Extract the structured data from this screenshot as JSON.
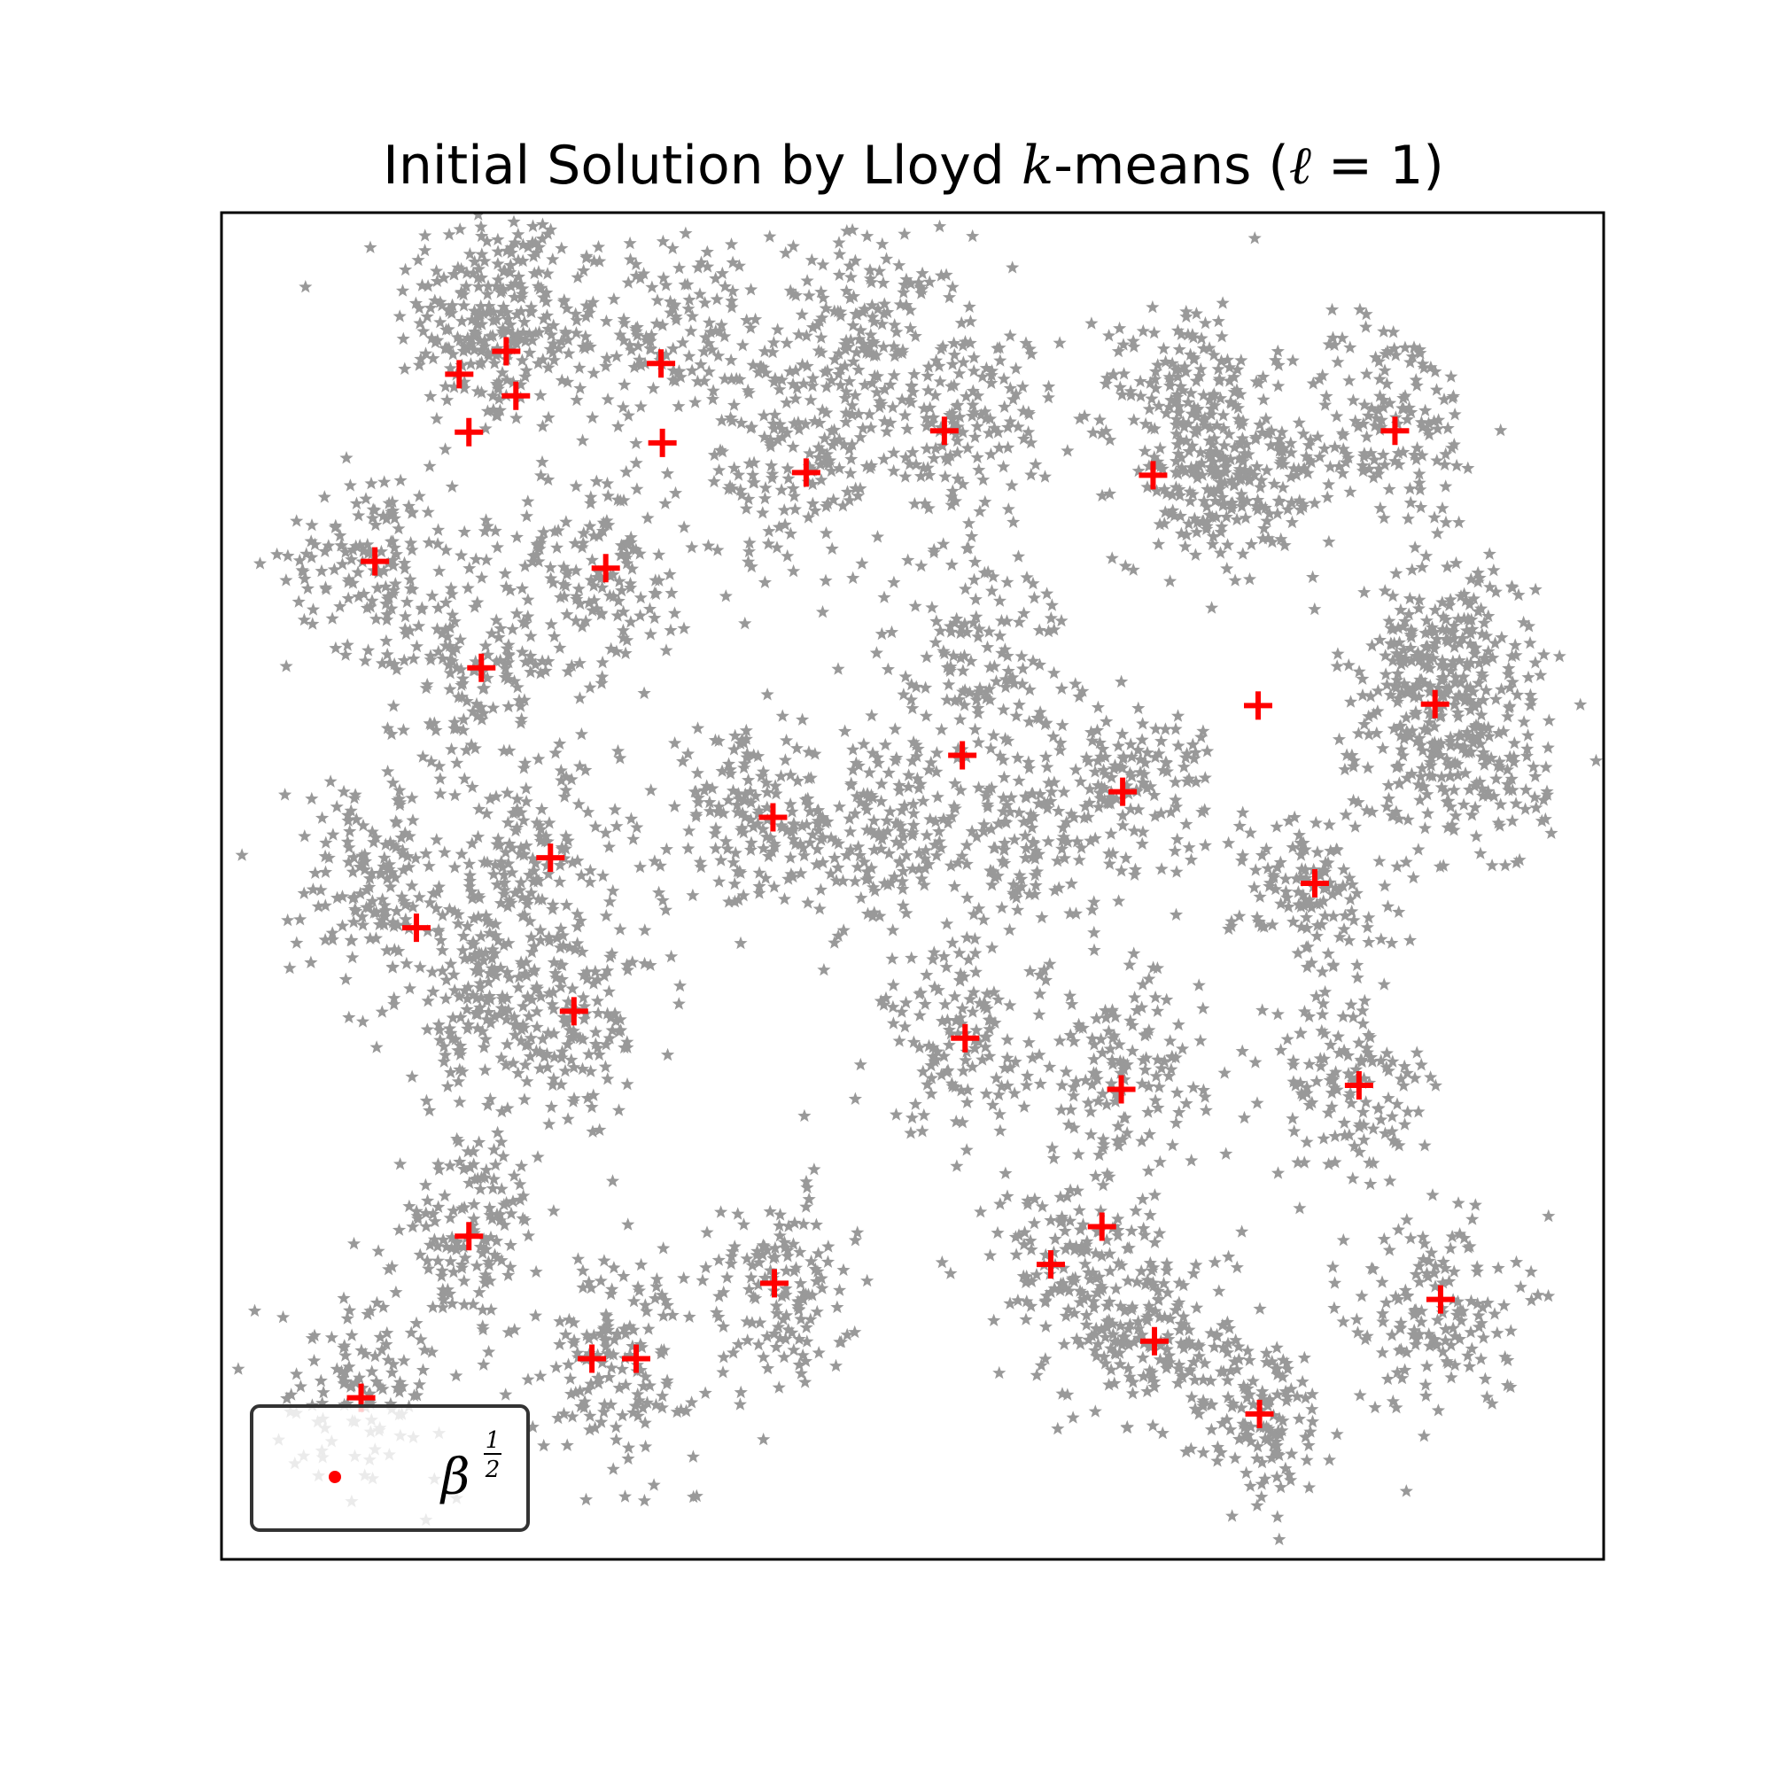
{
  "chart_data": {
    "type": "scatter",
    "title": {
      "prefix": "Initial Solution by Lloyd ",
      "k": "k",
      "middle": "-means (",
      "ell": "ℓ",
      "suffix": " = 1)"
    },
    "xlabel": "",
    "ylabel": "",
    "ticks_visible": false,
    "grid": false,
    "xlim": [
      0,
      1
    ],
    "ylim": [
      0,
      1
    ],
    "point_color": "#999999",
    "center_color": "#ff0000",
    "legend": {
      "placement": "lower-left",
      "symbol": "β",
      "sup_num": "1",
      "sup_den": "2"
    },
    "clusters": [
      {
        "x": 0.19,
        "y": 0.924,
        "sx": 0.032,
        "sy": 0.044,
        "n": 140
      },
      {
        "x": 0.212,
        "y": 0.917,
        "sx": 0.032,
        "sy": 0.04,
        "n": 140
      },
      {
        "x": 0.327,
        "y": 0.912,
        "sx": 0.036,
        "sy": 0.036,
        "n": 140
      },
      {
        "x": 0.47,
        "y": 0.911,
        "sx": 0.034,
        "sy": 0.036,
        "n": 150
      },
      {
        "x": 0.535,
        "y": 0.843,
        "sx": 0.035,
        "sy": 0.038,
        "n": 150
      },
      {
        "x": 0.707,
        "y": 0.805,
        "sx": 0.03,
        "sy": 0.032,
        "n": 120
      },
      {
        "x": 0.698,
        "y": 0.878,
        "sx": 0.03,
        "sy": 0.03,
        "n": 120
      },
      {
        "x": 0.845,
        "y": 0.845,
        "sx": 0.035,
        "sy": 0.04,
        "n": 140
      },
      {
        "x": 0.108,
        "y": 0.744,
        "sx": 0.03,
        "sy": 0.034,
        "n": 130
      },
      {
        "x": 0.185,
        "y": 0.666,
        "sx": 0.033,
        "sy": 0.042,
        "n": 150
      },
      {
        "x": 0.274,
        "y": 0.738,
        "sx": 0.034,
        "sy": 0.042,
        "n": 150
      },
      {
        "x": 0.416,
        "y": 0.814,
        "sx": 0.032,
        "sy": 0.045,
        "n": 150
      },
      {
        "x": 0.548,
        "y": 0.672,
        "sx": 0.034,
        "sy": 0.045,
        "n": 150
      },
      {
        "x": 0.752,
        "y": 0.798,
        "sx": 0.03,
        "sy": 0.035,
        "n": 140
      },
      {
        "x": 0.868,
        "y": 0.65,
        "sx": 0.032,
        "sy": 0.037,
        "n": 140
      },
      {
        "x": 0.9,
        "y": 0.67,
        "sx": 0.032,
        "sy": 0.042,
        "n": 150
      },
      {
        "x": 0.111,
        "y": 0.504,
        "sx": 0.03,
        "sy": 0.04,
        "n": 150
      },
      {
        "x": 0.225,
        "y": 0.52,
        "sx": 0.032,
        "sy": 0.04,
        "n": 140
      },
      {
        "x": 0.183,
        "y": 0.415,
        "sx": 0.032,
        "sy": 0.04,
        "n": 150
      },
      {
        "x": 0.255,
        "y": 0.405,
        "sx": 0.032,
        "sy": 0.04,
        "n": 150
      },
      {
        "x": 0.383,
        "y": 0.547,
        "sx": 0.032,
        "sy": 0.032,
        "n": 150
      },
      {
        "x": 0.475,
        "y": 0.54,
        "sx": 0.028,
        "sy": 0.036,
        "n": 150
      },
      {
        "x": 0.573,
        "y": 0.53,
        "sx": 0.03,
        "sy": 0.036,
        "n": 140
      },
      {
        "x": 0.66,
        "y": 0.577,
        "sx": 0.03,
        "sy": 0.028,
        "n": 130
      },
      {
        "x": 0.789,
        "y": 0.498,
        "sx": 0.028,
        "sy": 0.034,
        "n": 130
      },
      {
        "x": 0.897,
        "y": 0.58,
        "sx": 0.032,
        "sy": 0.036,
        "n": 140
      },
      {
        "x": 0.538,
        "y": 0.385,
        "sx": 0.03,
        "sy": 0.035,
        "n": 130
      },
      {
        "x": 0.65,
        "y": 0.355,
        "sx": 0.03,
        "sy": 0.04,
        "n": 140
      },
      {
        "x": 0.818,
        "y": 0.352,
        "sx": 0.03,
        "sy": 0.036,
        "n": 130
      },
      {
        "x": 0.18,
        "y": 0.24,
        "sx": 0.025,
        "sy": 0.038,
        "n": 140
      },
      {
        "x": 0.1,
        "y": 0.13,
        "sx": 0.03,
        "sy": 0.034,
        "n": 110
      },
      {
        "x": 0.288,
        "y": 0.15,
        "sx": 0.028,
        "sy": 0.038,
        "n": 150
      },
      {
        "x": 0.403,
        "y": 0.197,
        "sx": 0.026,
        "sy": 0.04,
        "n": 140
      },
      {
        "x": 0.615,
        "y": 0.22,
        "sx": 0.03,
        "sy": 0.035,
        "n": 140
      },
      {
        "x": 0.678,
        "y": 0.167,
        "sx": 0.03,
        "sy": 0.035,
        "n": 150
      },
      {
        "x": 0.752,
        "y": 0.102,
        "sx": 0.025,
        "sy": 0.037,
        "n": 130
      },
      {
        "x": 0.878,
        "y": 0.185,
        "sx": 0.03,
        "sy": 0.038,
        "n": 150
      }
    ],
    "centers": [
      {
        "x": 0.172,
        "y": 0.88
      },
      {
        "x": 0.206,
        "y": 0.897
      },
      {
        "x": 0.213,
        "y": 0.864
      },
      {
        "x": 0.179,
        "y": 0.837
      },
      {
        "x": 0.318,
        "y": 0.888
      },
      {
        "x": 0.319,
        "y": 0.829
      },
      {
        "x": 0.423,
        "y": 0.807
      },
      {
        "x": 0.523,
        "y": 0.838
      },
      {
        "x": 0.674,
        "y": 0.805
      },
      {
        "x": 0.849,
        "y": 0.838
      },
      {
        "x": 0.111,
        "y": 0.741
      },
      {
        "x": 0.278,
        "y": 0.736
      },
      {
        "x": 0.188,
        "y": 0.662
      },
      {
        "x": 0.75,
        "y": 0.634
      },
      {
        "x": 0.878,
        "y": 0.635
      },
      {
        "x": 0.536,
        "y": 0.597
      },
      {
        "x": 0.652,
        "y": 0.57
      },
      {
        "x": 0.238,
        "y": 0.521
      },
      {
        "x": 0.399,
        "y": 0.551
      },
      {
        "x": 0.141,
        "y": 0.469
      },
      {
        "x": 0.255,
        "y": 0.407
      },
      {
        "x": 0.791,
        "y": 0.502
      },
      {
        "x": 0.538,
        "y": 0.387
      },
      {
        "x": 0.651,
        "y": 0.349
      },
      {
        "x": 0.823,
        "y": 0.352
      },
      {
        "x": 0.179,
        "y": 0.24
      },
      {
        "x": 0.4,
        "y": 0.205
      },
      {
        "x": 0.637,
        "y": 0.247
      },
      {
        "x": 0.6,
        "y": 0.219
      },
      {
        "x": 0.101,
        "y": 0.12
      },
      {
        "x": 0.268,
        "y": 0.149
      },
      {
        "x": 0.3,
        "y": 0.149
      },
      {
        "x": 0.675,
        "y": 0.162
      },
      {
        "x": 0.751,
        "y": 0.108
      },
      {
        "x": 0.882,
        "y": 0.193
      }
    ]
  }
}
